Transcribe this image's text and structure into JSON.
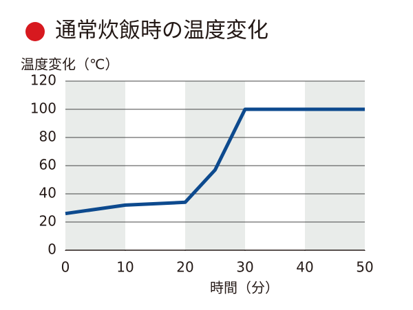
{
  "chart_data": {
    "type": "line",
    "title": "通常炊飯時の温度変化",
    "ylabel": "温度変化（℃）",
    "xlabel": "時間（分）",
    "x": [
      0,
      10,
      20,
      25,
      30,
      50
    ],
    "series": [
      {
        "color": "#0d4a8e",
        "values": [
          26,
          32,
          34,
          57,
          100,
          100
        ]
      }
    ],
    "xlim": [
      0,
      50
    ],
    "xticks": [
      0,
      10,
      20,
      30,
      40,
      50
    ],
    "ylim": [
      0,
      120
    ],
    "yticks": [
      0,
      20,
      40,
      60,
      80,
      100,
      120
    ],
    "bands": [
      [
        0,
        10
      ],
      [
        20,
        30
      ],
      [
        40,
        50
      ]
    ],
    "band_color": "#e9ecea",
    "grid": true,
    "title_marker_color": "#d7191f"
  }
}
